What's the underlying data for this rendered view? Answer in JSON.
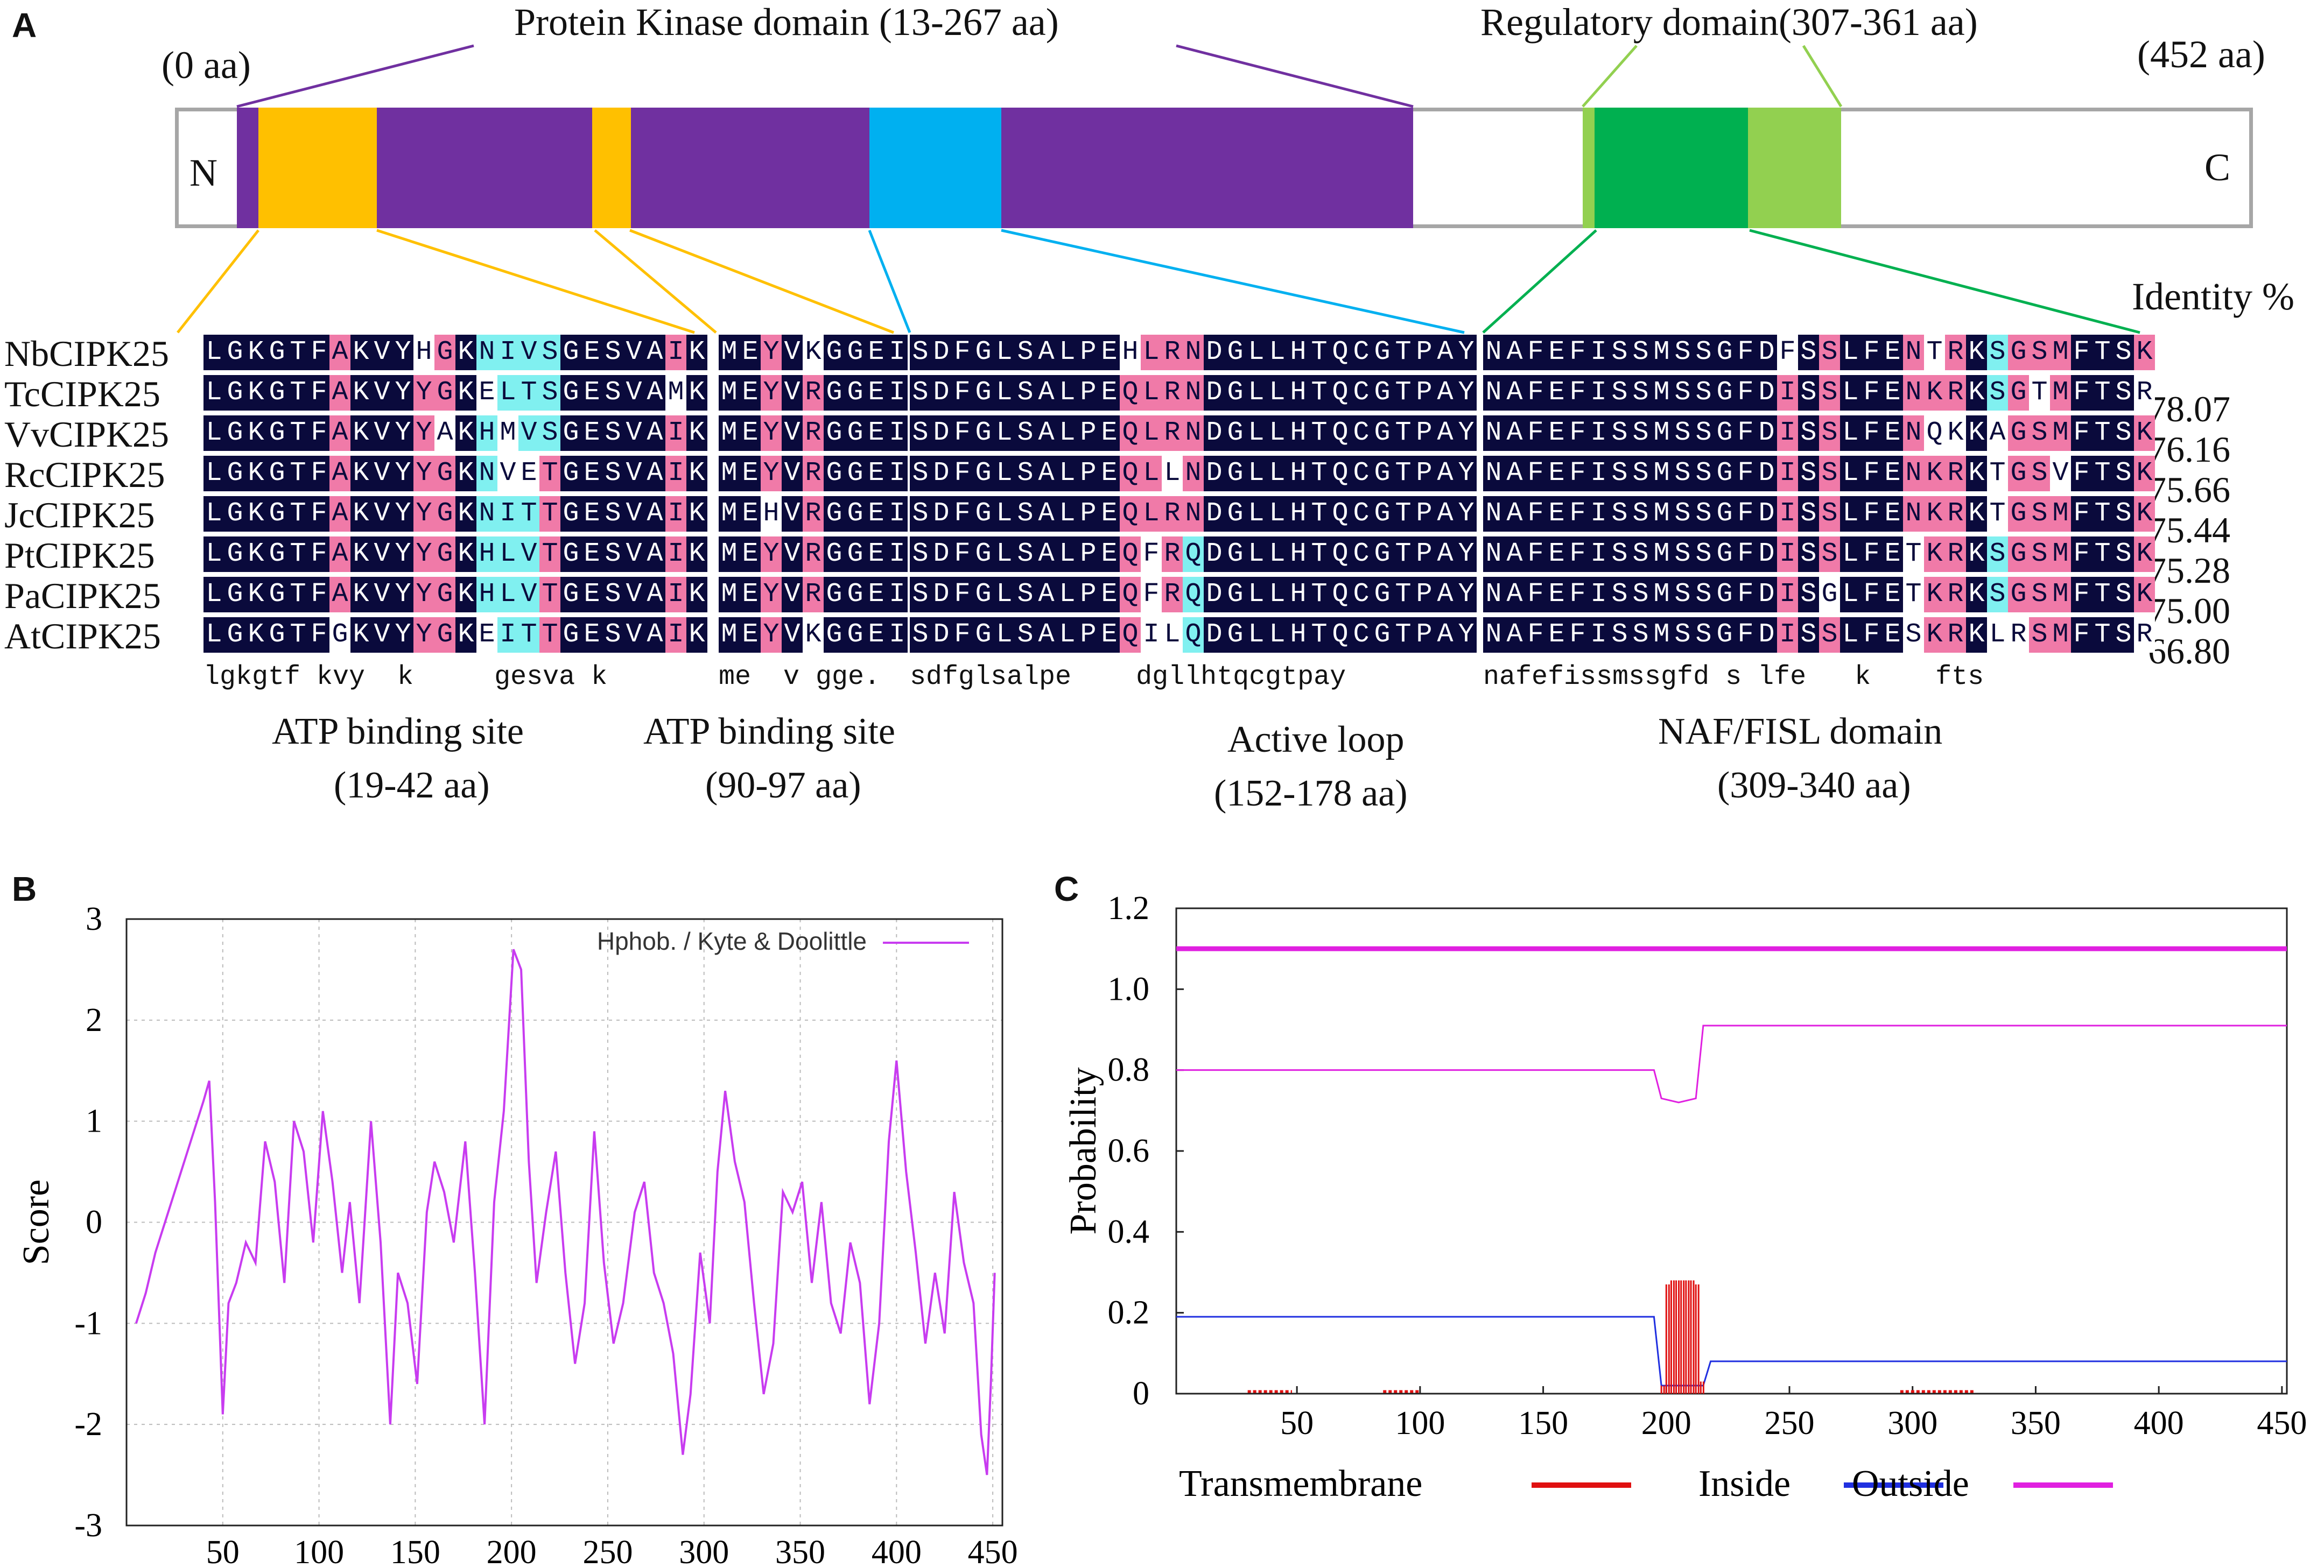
{
  "panel_a": {
    "panel_label": "A",
    "start_label": "(0 aa)",
    "end_label": "(452 aa)",
    "n_term": "N",
    "c_term": "C",
    "kinase_domain_label": "Protein Kinase domain (13-267 aa)",
    "regulatory_domain_label": "Regulatory domain(307-361 aa)",
    "identity_header": "Identity %",
    "colors": {
      "kinase": "#7030a0",
      "atp": "#ffc000",
      "active_loop": "#00b0f0",
      "naf": "#00b050",
      "regulatory": "#92d050",
      "identical": "#0a0a3c",
      "similar_pink": "#f07aa8",
      "similar_cyan": "#80f0f0",
      "border": "#a6a6a6"
    },
    "sequences": [
      {
        "name": "NbCIPK25",
        "identity": "",
        "block1": "LGKGTFAKVYHGKNIVSGESVAIK",
        "block2": "MEYVKGGEI",
        "block3": "SDFGLSALPEHLRNDGLLHTQCGTPAY",
        "block4": "NAFEFISSMSSGFDFSSLFENTRKSGSMFTSK"
      },
      {
        "name": "TcCIPK25",
        "identity": "78.07",
        "block1": "LGKGTFAKVYYGKELTSGESVAMK",
        "block2": "MEYVRGGEI",
        "block3": "SDFGLSALPEQLRNDGLLHTQCGTPAY",
        "block4": "NAFEFISSMSSGFDISSLFENKRKSGTMFTSR"
      },
      {
        "name": "VvCIPK25",
        "identity": "76.16",
        "block1": "LGKGTFAKVYYAKHMVSGESVAIK",
        "block2": "MEYVRGGEI",
        "block3": "SDFGLSALPEQLRNDGLLHTQCGTPAY",
        "block4": "NAFEFISSMSSGFDISSLFENQKKAGSMFTSK"
      },
      {
        "name": "RcCIPK25",
        "identity": "75.66",
        "block1": "LGKGTFAKVYYGKNVETGESVAIK",
        "block2": "MEYVRGGEI",
        "block3": "SDFGLSALPEQLLNDGLLHTQCGTPAY",
        "block4": "NAFEFISSMSSGFDISSLFENKRKTGSVFTSK"
      },
      {
        "name": "JcCIPK25",
        "identity": "75.44",
        "block1": "LGKGTFAKVYYGKNITTGESVAIK",
        "block2": "MEHVRGGEI",
        "block3": "SDFGLSALPEQLRNDGLLHTQCGTPAY",
        "block4": "NAFEFISSMSSGFDISSLFENKRKTGSMFTSK"
      },
      {
        "name": "PtCIPK25",
        "identity": "75.28",
        "block1": "LGKGTFAKVYYGKHLVTGESVAIK",
        "block2": "MEYVRGGEI",
        "block3": "SDFGLSALPEQFRQDGLLHTQCGTPAY",
        "block4": "NAFEFISSMSSGFDISSLFETKRKSGSMFTSK"
      },
      {
        "name": "PaCIPK25",
        "identity": "75.00",
        "block1": "LGKGTFAKVYYGKHLVTGESVAIK",
        "block2": "MEYVRGGEI",
        "block3": "SDFGLSALPEQFRQDGLLHTQCGTPAY",
        "block4": "NAFEFISSMSSGFDISGLFETKRKSGSMFTSK"
      },
      {
        "name": "AtCIPK25",
        "identity": "66.80",
        "block1": "LGKGTFGKVYYGKEITTGESVAIK",
        "block2": "MEYVKGGEI",
        "block3": "SDFGLSALPEQILQDGLLHTQCGTPAY",
        "block4": "NAFEFISSMSSGFDISSLFESKRKLRSMFTSR"
      }
    ],
    "consensus": {
      "block1": "lgkgtf kvy  k     gesva k",
      "block2": "me  v gge.",
      "block3": "sdfglsalpe    dgllhtqcgtpay",
      "block4": "nafefissmssgfd s lfe   k    fts"
    },
    "captions": {
      "atp1_name": "ATP binding site",
      "atp1_range": "(19-42 aa)",
      "atp2_name": "ATP binding site",
      "atp2_range": "(90-97 aa)",
      "loop_name": "Active loop",
      "loop_range": "(152-178 aa)",
      "naf_name": "NAF/FISL domain",
      "naf_range": "(309-340 aa)"
    }
  },
  "chart_data": [
    {
      "panel_label": "B",
      "type": "line",
      "title": "",
      "xlabel": "",
      "ylabel": "Score",
      "xlim": [
        0,
        455
      ],
      "ylim": [
        -3,
        3
      ],
      "xticks": [
        "50",
        "100",
        "150",
        "200",
        "250",
        "300",
        "350",
        "400",
        "450"
      ],
      "yticks": [
        "3",
        "2",
        "1",
        "0",
        "-1",
        "-2",
        "-3"
      ],
      "grid": true,
      "legend": "top-right",
      "series": [
        {
          "name": "Hphob. / Kyte & Doolittle",
          "color": "#c83cf0",
          "x": [
            5,
            10,
            15,
            20,
            25,
            30,
            35,
            40,
            43,
            46,
            50,
            53,
            57,
            62,
            67,
            72,
            77,
            82,
            87,
            92,
            97,
            102,
            107,
            112,
            116,
            121,
            127,
            132,
            137,
            141,
            146,
            151,
            156,
            160,
            165,
            170,
            176,
            181,
            186,
            191,
            196,
            201,
            205,
            209,
            213,
            218,
            223,
            228,
            233,
            238,
            243,
            248,
            253,
            258,
            264,
            269,
            274,
            279,
            284,
            289,
            293,
            298,
            303,
            307,
            311,
            316,
            321,
            326,
            331,
            336,
            341,
            346,
            351,
            356,
            361,
            366,
            371,
            376,
            381,
            386,
            391,
            396,
            400,
            405,
            410,
            415,
            420,
            425,
            430,
            435,
            440,
            444,
            447,
            449,
            451
          ],
          "y": [
            -1.0,
            -0.7,
            -0.3,
            0.0,
            0.3,
            0.6,
            0.9,
            1.2,
            1.4,
            0.2,
            -1.9,
            -0.8,
            -0.6,
            -0.2,
            -0.4,
            0.8,
            0.4,
            -0.6,
            1.0,
            0.7,
            -0.2,
            1.1,
            0.4,
            -0.5,
            0.2,
            -0.8,
            1.0,
            -0.2,
            -2.0,
            -0.5,
            -0.8,
            -1.6,
            0.1,
            0.6,
            0.3,
            -0.2,
            0.8,
            -0.5,
            -2.0,
            0.2,
            1.1,
            2.7,
            2.5,
            0.6,
            -0.6,
            0.1,
            0.7,
            -0.5,
            -1.4,
            -0.8,
            0.9,
            -0.4,
            -1.2,
            -0.8,
            0.1,
            0.4,
            -0.5,
            -0.8,
            -1.3,
            -2.3,
            -1.7,
            -0.3,
            -1.0,
            0.5,
            1.3,
            0.6,
            0.2,
            -0.8,
            -1.7,
            -1.2,
            0.3,
            0.1,
            0.4,
            -0.6,
            0.2,
            -0.8,
            -1.1,
            -0.2,
            -0.6,
            -1.8,
            -1.0,
            0.8,
            1.6,
            0.5,
            -0.3,
            -1.2,
            -0.5,
            -1.1,
            0.3,
            -0.4,
            -0.8,
            -2.1,
            -2.5,
            -1.6,
            -0.5
          ]
        }
      ]
    },
    {
      "panel_label": "C",
      "type": "line",
      "title": "",
      "xlabel": "",
      "ylabel": "Probability",
      "xlim": [
        1,
        452
      ],
      "ylim": [
        0,
        1.2
      ],
      "xticks": [
        "50",
        "100",
        "150",
        "200",
        "250",
        "300",
        "350",
        "400",
        "450"
      ],
      "yticks": [
        "1.2",
        "1.0",
        "0.8",
        "0.6",
        "0.4",
        "0.2",
        "0"
      ],
      "grid": false,
      "legend": "bottom",
      "legend_labels": [
        "Transmembrane",
        "Inside",
        "Outside"
      ],
      "series": [
        {
          "name": "Outside",
          "color": "#e020e0",
          "x": [
            1,
            452
          ],
          "y": [
            1.1,
            1.1
          ]
        },
        {
          "name": "Outside (probability)",
          "color": "#e020e0",
          "x": [
            1,
            195,
            198,
            205,
            212,
            215,
            452
          ],
          "y": [
            0.8,
            0.8,
            0.73,
            0.72,
            0.73,
            0.91,
            0.91
          ]
        },
        {
          "name": "Inside",
          "color": "#2030e0",
          "x": [
            1,
            195,
            198,
            215,
            218,
            452
          ],
          "y": [
            0.19,
            0.19,
            0.02,
            0.02,
            0.08,
            0.08
          ]
        },
        {
          "name": "Transmembrane",
          "color": "#e01010",
          "type": "bar",
          "x": [
            198,
            200,
            202,
            204,
            206,
            208,
            210,
            212,
            214
          ],
          "y": [
            0.02,
            0.27,
            0.28,
            0.28,
            0.28,
            0.28,
            0.28,
            0.27,
            0.03
          ]
        }
      ]
    }
  ]
}
